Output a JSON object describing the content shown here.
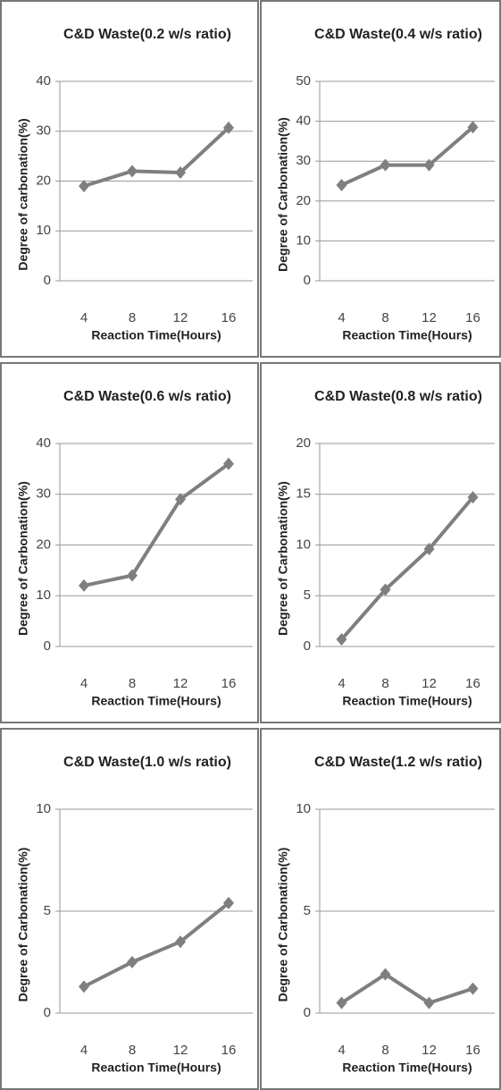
{
  "chart_data": [
    {
      "type": "line",
      "title": "C&D Waste(0.2 w/s ratio)",
      "x_label": "Reaction Time(Hours)",
      "y_label": "Degree of carbonation(%)",
      "categories": [
        "4",
        "8",
        "12",
        "16"
      ],
      "values": [
        19,
        22,
        21.7,
        30.7
      ],
      "color": "#7f7f7f",
      "ylim": [
        0,
        40
      ],
      "yticks": [
        0,
        10,
        20,
        30,
        40
      ],
      "grid": true
    },
    {
      "type": "line",
      "title": "C&D Waste(0.4 w/s ratio)",
      "x_label": "Reaction Time(Hours)",
      "y_label": "Degree of Carbonation(%)",
      "categories": [
        "4",
        "8",
        "12",
        "16"
      ],
      "values": [
        24,
        29,
        29,
        38.5
      ],
      "color": "#7f7f7f",
      "ylim": [
        0,
        50
      ],
      "yticks": [
        0,
        10,
        20,
        30,
        40,
        50
      ],
      "grid": true
    },
    {
      "type": "line",
      "title": "C&D Waste(0.6 w/s ratio)",
      "x_label": "Reaction Time(Hours)",
      "y_label": "Degree of Carbonation(%)",
      "categories": [
        "4",
        "8",
        "12",
        "16"
      ],
      "values": [
        12,
        14,
        29,
        36
      ],
      "color": "#7f7f7f",
      "ylim": [
        0,
        40
      ],
      "yticks": [
        0,
        10,
        20,
        30,
        40
      ],
      "grid": true
    },
    {
      "type": "line",
      "title": "C&D Waste(0.8 w/s ratio)",
      "x_label": "Reaction Time(Hours)",
      "y_label": "Degree of Carbonation(%)",
      "categories": [
        "4",
        "8",
        "12",
        "16"
      ],
      "values": [
        0.7,
        5.6,
        9.6,
        14.7
      ],
      "color": "#7f7f7f",
      "ylim": [
        0,
        20
      ],
      "yticks": [
        0,
        5,
        10,
        15,
        20
      ],
      "grid": true
    },
    {
      "type": "line",
      "title": "C&D Waste(1.0 w/s ratio)",
      "x_label": "Reaction Time(Hours)",
      "y_label": "Degree of Carbonation(%)",
      "categories": [
        "4",
        "8",
        "12",
        "16"
      ],
      "values": [
        1.3,
        2.5,
        3.5,
        5.4
      ],
      "color": "#7f7f7f",
      "ylim": [
        0,
        10
      ],
      "yticks": [
        0,
        5,
        10
      ],
      "grid": true
    },
    {
      "type": "line",
      "title": "C&D Waste(1.2 w/s ratio)",
      "x_label": "Reaction Time(Hours)",
      "y_label": "Degree of Carbonation(%)",
      "categories": [
        "4",
        "8",
        "12",
        "16"
      ],
      "values": [
        0.5,
        1.9,
        0.5,
        1.2
      ],
      "color": "#7f7f7f",
      "ylim": [
        0,
        10
      ],
      "yticks": [
        0,
        5,
        10
      ],
      "grid": true
    }
  ]
}
